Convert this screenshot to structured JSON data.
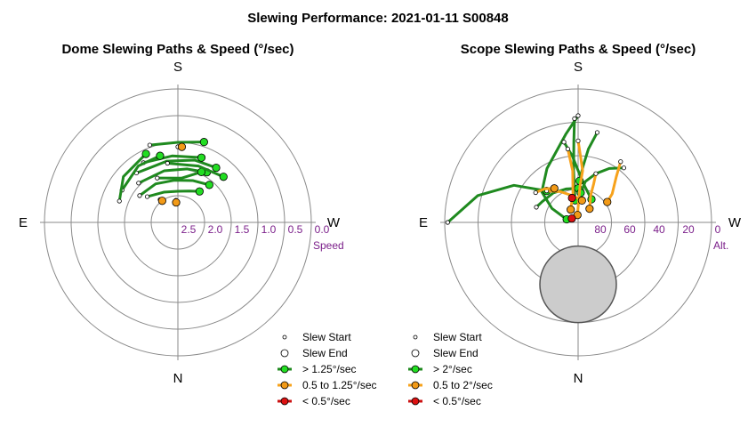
{
  "title": "Slewing Performance: 2021-01-11 S00848",
  "colors": {
    "green": "#1f8a1f",
    "green_fill": "#22dd22",
    "orange": "#f7a21b",
    "orange_fill": "#f29a17",
    "red": "#cc1111",
    "red_fill": "#dd1111",
    "ring": "#8a8a8a",
    "tick": "#7b1f8a",
    "cap": "#cccccc"
  },
  "chart_data": [
    {
      "type": "polar-scatter-line",
      "title": "Dome Slewing Paths & Speed (°/sec)",
      "compass": {
        "top": "S",
        "bottom": "N",
        "left": "E",
        "right": "W"
      },
      "radial_axis": {
        "label": "Speed",
        "ticks": [
          "2.5",
          "2.0",
          "1.5",
          "1.0",
          "0.5",
          "0.0"
        ],
        "range": [
          3.0,
          0.0
        ]
      },
      "legend": [
        {
          "label": "Slew Start",
          "marker": "small-open"
        },
        {
          "label": "Slew End",
          "marker": "open"
        },
        {
          "label": "> 1.25°/sec",
          "color": "green"
        },
        {
          "label": "0.5 to 1.25°/sec",
          "color": "orange"
        },
        {
          "label": "< 0.5°/sec",
          "color": "red"
        }
      ],
      "paths": [
        {
          "c": "g",
          "pts": [
            [
              -50,
              2.1
            ],
            [
              -25,
              2.25
            ],
            [
              0,
              2.3
            ],
            [
              20,
              2.25
            ],
            [
              35,
              2.15
            ]
          ]
        },
        {
          "c": "g",
          "pts": [
            [
              -55,
              1.95
            ],
            [
              -30,
              2.0
            ],
            [
              -5,
              2.05
            ],
            [
              20,
              2.0
            ],
            [
              40,
              1.9
            ]
          ]
        },
        {
          "c": "g",
          "pts": [
            [
              -45,
              1.75
            ],
            [
              -15,
              1.8
            ],
            [
              10,
              1.78
            ],
            [
              30,
              1.7
            ]
          ]
        },
        {
          "c": "g",
          "pts": [
            [
              -40,
              1.55
            ],
            [
              -10,
              1.6
            ],
            [
              15,
              1.55
            ],
            [
              35,
              1.5
            ]
          ]
        },
        {
          "c": "g",
          "pts": [
            [
              -30,
              1.45
            ],
            [
              -5,
              1.5
            ],
            [
              20,
              1.45
            ]
          ]
        },
        {
          "c": "g",
          "pts": [
            [
              -60,
              1.55
            ],
            [
              -35,
              1.45
            ],
            [
              -15,
              1.45
            ]
          ]
        },
        {
          "c": "g",
          "pts": [
            [
              -70,
              1.6
            ],
            [
              -50,
              1.4
            ],
            [
              -25,
              1.3
            ]
          ]
        },
        {
          "c": "g",
          "pts": [
            [
              -25,
              1.9
            ],
            [
              5,
              2.0
            ],
            [
              25,
              1.75
            ]
          ]
        },
        {
          "c": "g",
          "pts": [
            [
              -10,
              1.65
            ],
            [
              20,
              1.65
            ],
            [
              45,
              1.55
            ]
          ]
        },
        {
          "c": "g",
          "pts": [
            [
              -20,
              1.15
            ],
            [
              0,
              1.2
            ],
            [
              18,
              1.1
            ]
          ]
        },
        {
          "c": "o",
          "pts": [
            [
              -5,
              2.5
            ],
            [
              -5,
              2.55
            ]
          ]
        },
        {
          "c": "o",
          "pts": [
            [
              -38,
              2.35
            ],
            [
              -36,
              2.4
            ]
          ]
        },
        {
          "c": "o",
          "pts": [
            [
              0,
              1.3
            ],
            [
              3,
              1.3
            ]
          ]
        }
      ]
    },
    {
      "type": "polar-scatter-line",
      "title": "Scope Slewing Paths & Speed (°/sec)",
      "compass": {
        "top": "S",
        "bottom": "N",
        "left": "E",
        "right": "W"
      },
      "radial_axis": {
        "label": "Alt.",
        "ticks": [
          "80",
          "60",
          "40",
          "20",
          "0"
        ],
        "range": [
          90,
          0
        ]
      },
      "legend": [
        {
          "label": "Slew Start",
          "marker": "small-open"
        },
        {
          "label": "Slew End",
          "marker": "open"
        },
        {
          "label": "> 2°/sec",
          "color": "green"
        },
        {
          "label": "0.5 to 2°/sec",
          "color": "orange"
        },
        {
          "label": "< 0.5°/sec",
          "color": "red"
        }
      ],
      "horizon_cap": {
        "altitude_edge": 74
      },
      "paths": [
        {
          "c": "g",
          "pts": [
            [
              0,
              18
            ],
            [
              -8,
              30
            ],
            [
              -30,
              48
            ],
            [
              -50,
              58
            ],
            [
              -62,
              70
            ],
            [
              -75,
              82
            ]
          ]
        },
        {
          "c": "g",
          "pts": [
            [
              -2,
              20
            ],
            [
              -3,
              35
            ],
            [
              -5,
              55
            ],
            [
              -8,
              75
            ]
          ]
        },
        {
          "c": "g",
          "pts": [
            [
              -70,
              60
            ],
            [
              -60,
              62
            ],
            [
              -40,
              64
            ],
            [
              -20,
              66
            ],
            [
              0,
              67
            ]
          ]
        },
        {
          "c": "g",
          "pts": [
            [
              40,
              42
            ],
            [
              30,
              48
            ],
            [
              20,
              55
            ],
            [
              10,
              62
            ],
            [
              5,
              70
            ]
          ]
        },
        {
          "c": "g",
          "pts": [
            [
              -10,
              35
            ],
            [
              -5,
              45
            ],
            [
              0,
              55
            ],
            [
              10,
              65
            ],
            [
              30,
              72
            ]
          ]
        },
        {
          "c": "g",
          "pts": [
            [
              -90,
              2
            ],
            [
              -75,
              20
            ],
            [
              -60,
              40
            ],
            [
              -45,
              60
            ]
          ]
        },
        {
          "c": "g",
          "pts": [
            [
              12,
              28
            ],
            [
              8,
              40
            ],
            [
              5,
              52
            ],
            [
              2,
              62
            ]
          ]
        },
        {
          "c": "o",
          "pts": [
            [
              0,
              35
            ],
            [
              2,
              45
            ],
            [
              5,
              55
            ],
            [
              3,
              65
            ],
            [
              0,
              80
            ],
            [
              -5,
              85
            ]
          ]
        },
        {
          "c": "o",
          "pts": [
            [
              35,
              40
            ],
            [
              40,
              50
            ],
            [
              50,
              60
            ],
            [
              55,
              66
            ]
          ]
        },
        {
          "c": "o",
          "pts": [
            [
              -45,
              60
            ],
            [
              -30,
              66
            ],
            [
              -10,
              72
            ],
            [
              10,
              75
            ]
          ]
        },
        {
          "c": "o",
          "pts": [
            [
              -8,
              40
            ],
            [
              -6,
              55
            ],
            [
              -10,
              70
            ],
            [
              -30,
              80
            ]
          ]
        },
        {
          "c": "o",
          "pts": [
            [
              20,
              55
            ],
            [
              22,
              62
            ],
            [
              25,
              70
            ],
            [
              40,
              78
            ]
          ]
        },
        {
          "c": "o",
          "pts": [
            [
              -55,
              55
            ],
            [
              -45,
              58
            ],
            [
              -35,
              62
            ]
          ]
        },
        {
          "c": "r",
          "pts": [
            [
              -15,
              72
            ],
            [
              -14,
              73
            ]
          ]
        },
        {
          "c": "r",
          "pts": [
            [
              -60,
              84
            ],
            [
              -58,
              85
            ]
          ]
        }
      ]
    }
  ]
}
